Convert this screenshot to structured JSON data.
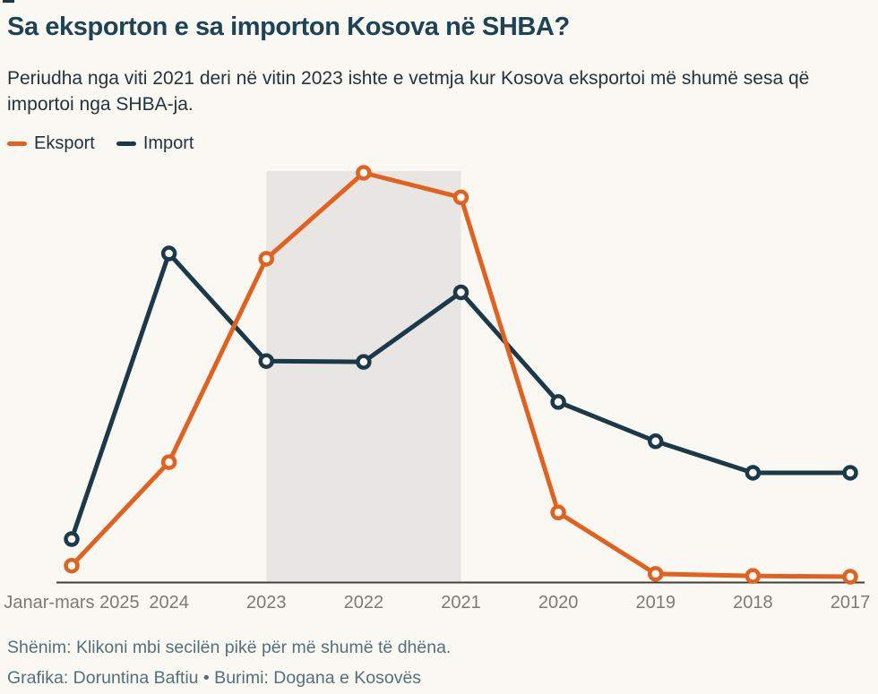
{
  "header": {
    "title": "Sa eksporton e sa importon Kosova në SHBA?",
    "subtitle": "Periudha nga viti 2021 deri në vitin 2023 ishte e vetmja kur Kosova eksportoi më shumë sesa që importoi nga SHBA-ja."
  },
  "legend": [
    {
      "id": "eksport",
      "label": "Eksport",
      "color": "#E2611E"
    },
    {
      "id": "import",
      "label": "Import",
      "color": "#1B3948"
    }
  ],
  "chart_data": {
    "type": "line",
    "title": "Sa eksporton e sa importon Kosova në SHBA?",
    "categories": [
      "Janar-mars 2025",
      "2024",
      "2023",
      "2022",
      "2021",
      "2020",
      "2019",
      "2018",
      "2017"
    ],
    "series": [
      {
        "name": "Eksport",
        "color": "#E2611E",
        "values": [
          4,
          29.3,
          79,
          100,
          94,
          17,
          2,
          1.5,
          1.3
        ]
      },
      {
        "name": "Import",
        "color": "#1B3948",
        "values": [
          10.5,
          80.3,
          54,
          53.8,
          70.8,
          44,
          34.4,
          26.7,
          26.7
        ]
      }
    ],
    "xlabel": "",
    "ylabel": "",
    "ylim": [
      0,
      100
    ],
    "y_axis_shown": false,
    "value_scale_note": "No y-axis labels in source graphic; values are relative estimates with Eksport 2022 peak = 100",
    "grid": false,
    "legend_position": "top-left",
    "markers": "open-circle",
    "highlight_region": {
      "from": "2023",
      "to": "2021",
      "color": "#E8E6E2"
    }
  },
  "colors": {
    "background": "#FAF8F2",
    "band": "#E8E6E2",
    "axis": "#3F3F3C",
    "title": "#1D4355",
    "body_text": "#24333C",
    "muted_text": "#54707A",
    "tick_labels": "#7B7A74",
    "eksport": "#E2611E",
    "import": "#1B3948"
  },
  "footer": {
    "note": "Shënim: Klikoni mbi secilën pikë për më shumë të dhëna.",
    "credit": "Grafika: Doruntina Baftiu • Burimi: Dogana e Kosovës"
  }
}
